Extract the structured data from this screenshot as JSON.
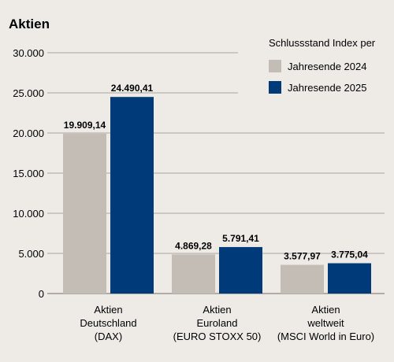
{
  "chart_data": {
    "type": "bar",
    "title": "Aktien",
    "legend_title": "Schlussstand Index per",
    "legend_position": "top-right",
    "categories": [
      [
        "Aktien",
        "Deutschland",
        "(DAX)"
      ],
      [
        "Aktien",
        "Euroland",
        "(EURO STOXX 50)"
      ],
      [
        "Aktien",
        "weltweit",
        "(MSCI World in Euro)"
      ]
    ],
    "series": [
      {
        "name": "Jahresende 2024",
        "color": "#c4bdb5",
        "values": [
          19909.14,
          4869.28,
          3577.97
        ],
        "labels": [
          "19.909,14",
          "4.869,28",
          "3.577,97"
        ]
      },
      {
        "name": "Jahresende 2025",
        "color": "#003a78",
        "values": [
          24490.41,
          5791.41,
          3775.04
        ],
        "labels": [
          "24.490,41",
          "5.791,41",
          "3.775,04"
        ]
      }
    ],
    "ylim": [
      0,
      30000
    ],
    "yticks": [
      0,
      5000,
      10000,
      15000,
      20000,
      25000,
      30000
    ],
    "ytick_labels": [
      "0",
      "5.000",
      "10.000",
      "15.000",
      "20.000",
      "25.000",
      "30.000"
    ],
    "grid": true
  }
}
